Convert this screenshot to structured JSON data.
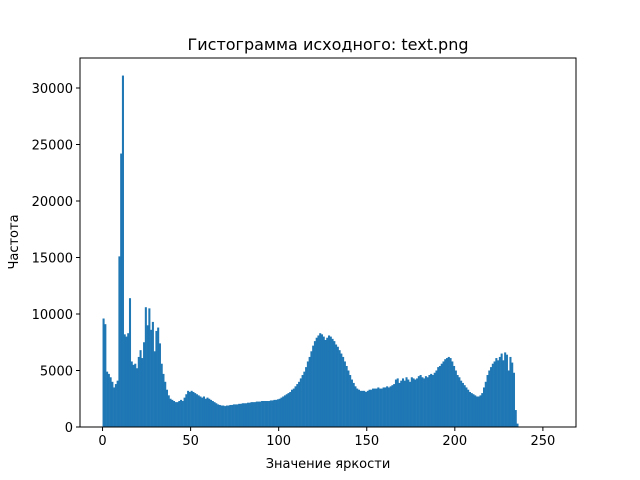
{
  "chart_data": {
    "type": "histogram",
    "title": "Гистограмма исходного: text.png",
    "xlabel": "Значение яркости",
    "ylabel": "Частота",
    "color": "#1f77b4",
    "bins": [
      0,
      1,
      2,
      3,
      4,
      5,
      6,
      7,
      8,
      9,
      10,
      11,
      12,
      13,
      14,
      15,
      16,
      17,
      18,
      19,
      20,
      21,
      22,
      23,
      24,
      25,
      26,
      27,
      28,
      29,
      30,
      31,
      32,
      33,
      34,
      35,
      36,
      37,
      38,
      39,
      40,
      41,
      42,
      43,
      44,
      45,
      46,
      47,
      48,
      49,
      50,
      51,
      52,
      53,
      54,
      55,
      56,
      57,
      58,
      59,
      60,
      61,
      62,
      63,
      64,
      65,
      66,
      67,
      68,
      69,
      70,
      71,
      72,
      73,
      74,
      75,
      76,
      77,
      78,
      79,
      80,
      81,
      82,
      83,
      84,
      85,
      86,
      87,
      88,
      89,
      90,
      91,
      92,
      93,
      94,
      95,
      96,
      97,
      98,
      99,
      100,
      101,
      102,
      103,
      104,
      105,
      106,
      107,
      108,
      109,
      110,
      111,
      112,
      113,
      114,
      115,
      116,
      117,
      118,
      119,
      120,
      121,
      122,
      123,
      124,
      125,
      126,
      127,
      128,
      129,
      130,
      131,
      132,
      133,
      134,
      135,
      136,
      137,
      138,
      139,
      140,
      141,
      142,
      143,
      144,
      145,
      146,
      147,
      148,
      149,
      150,
      151,
      152,
      153,
      154,
      155,
      156,
      157,
      158,
      159,
      160,
      161,
      162,
      163,
      164,
      165,
      166,
      167,
      168,
      169,
      170,
      171,
      172,
      173,
      174,
      175,
      176,
      177,
      178,
      179,
      180,
      181,
      182,
      183,
      184,
      185,
      186,
      187,
      188,
      189,
      190,
      191,
      192,
      193,
      194,
      195,
      196,
      197,
      198,
      199,
      200,
      201,
      202,
      203,
      204,
      205,
      206,
      207,
      208,
      209,
      210,
      211,
      212,
      213,
      214,
      215,
      216,
      217,
      218,
      219,
      220,
      221,
      222,
      223,
      224,
      225,
      226,
      227,
      228,
      229,
      230,
      231,
      232,
      233,
      234,
      235,
      236,
      237,
      238,
      239,
      240,
      241,
      242,
      243,
      244,
      245,
      246,
      247,
      248,
      249,
      250,
      251,
      252,
      253,
      254,
      255,
      256
    ],
    "counts": [
      9600,
      9100,
      4900,
      4700,
      4400,
      4000,
      3500,
      3800,
      4100,
      15100,
      24200,
      31100,
      8200,
      8000,
      8300,
      11400,
      5800,
      5500,
      5600,
      5200,
      6200,
      6800,
      6100,
      7500,
      10600,
      9000,
      10500,
      8600,
      9300,
      6700,
      8500,
      8800,
      7400,
      5600,
      4700,
      4000,
      3300,
      2800,
      2500,
      2400,
      2300,
      2200,
      2200,
      2300,
      2400,
      2300,
      2600,
      2900,
      3200,
      3100,
      3200,
      3100,
      3000,
      2900,
      2800,
      2700,
      2600,
      2700,
      2500,
      2600,
      2500,
      2400,
      2300,
      2200,
      2100,
      2000,
      1950,
      1900,
      1900,
      1850,
      1900,
      1900,
      1950,
      1950,
      2000,
      2000,
      2000,
      2050,
      2050,
      2100,
      2100,
      2100,
      2150,
      2150,
      2200,
      2200,
      2200,
      2250,
      2250,
      2250,
      2300,
      2300,
      2300,
      2300,
      2300,
      2350,
      2350,
      2400,
      2400,
      2450,
      2500,
      2600,
      2700,
      2800,
      2900,
      3000,
      3100,
      3300,
      3400,
      3600,
      3800,
      4000,
      4300,
      4600,
      4900,
      5300,
      5800,
      6200,
      6700,
      7200,
      7600,
      7900,
      8100,
      8300,
      8200,
      8000,
      7700,
      7900,
      8100,
      8000,
      7800,
      7600,
      7300,
      7100,
      6800,
      6500,
      6200,
      5800,
      5400,
      5000,
      4600,
      4200,
      3900,
      3600,
      3400,
      3300,
      3200,
      3200,
      3200,
      3100,
      3200,
      3300,
      3300,
      3400,
      3400,
      3400,
      3500,
      3400,
      3400,
      3500,
      3500,
      3600,
      3500,
      3600,
      3700,
      3800,
      4200,
      4300,
      3900,
      4100,
      4300,
      4100,
      4400,
      4200,
      4000,
      4400,
      4300,
      4200,
      4300,
      4500,
      4600,
      4400,
      4300,
      4500,
      4400,
      4600,
      4700,
      4600,
      4800,
      5000,
      5300,
      5400,
      5600,
      5800,
      6000,
      6100,
      6200,
      6100,
      5800,
      5400,
      5000,
      4600,
      4400,
      4100,
      3900,
      3700,
      3500,
      3300,
      3100,
      3000,
      2900,
      2800,
      2700,
      2700,
      2800,
      3000,
      3500,
      4000,
      4600,
      5000,
      5300,
      5600,
      5800,
      6100,
      5900,
      6200,
      6500,
      5900,
      6600,
      6400,
      5000,
      6200,
      5700,
      4800,
      1500,
      300,
      0,
      0,
      0,
      0,
      0,
      0,
      0,
      0,
      0,
      0,
      0,
      0,
      0,
      0,
      0,
      0,
      0,
      0,
      0,
      0
    ],
    "xlim": [
      -12.8,
      268.8
    ],
    "ylim": [
      0,
      32655
    ],
    "xticks": [
      0,
      50,
      100,
      150,
      200,
      250
    ],
    "yticks": [
      0,
      5000,
      10000,
      15000,
      20000,
      25000,
      30000
    ]
  }
}
